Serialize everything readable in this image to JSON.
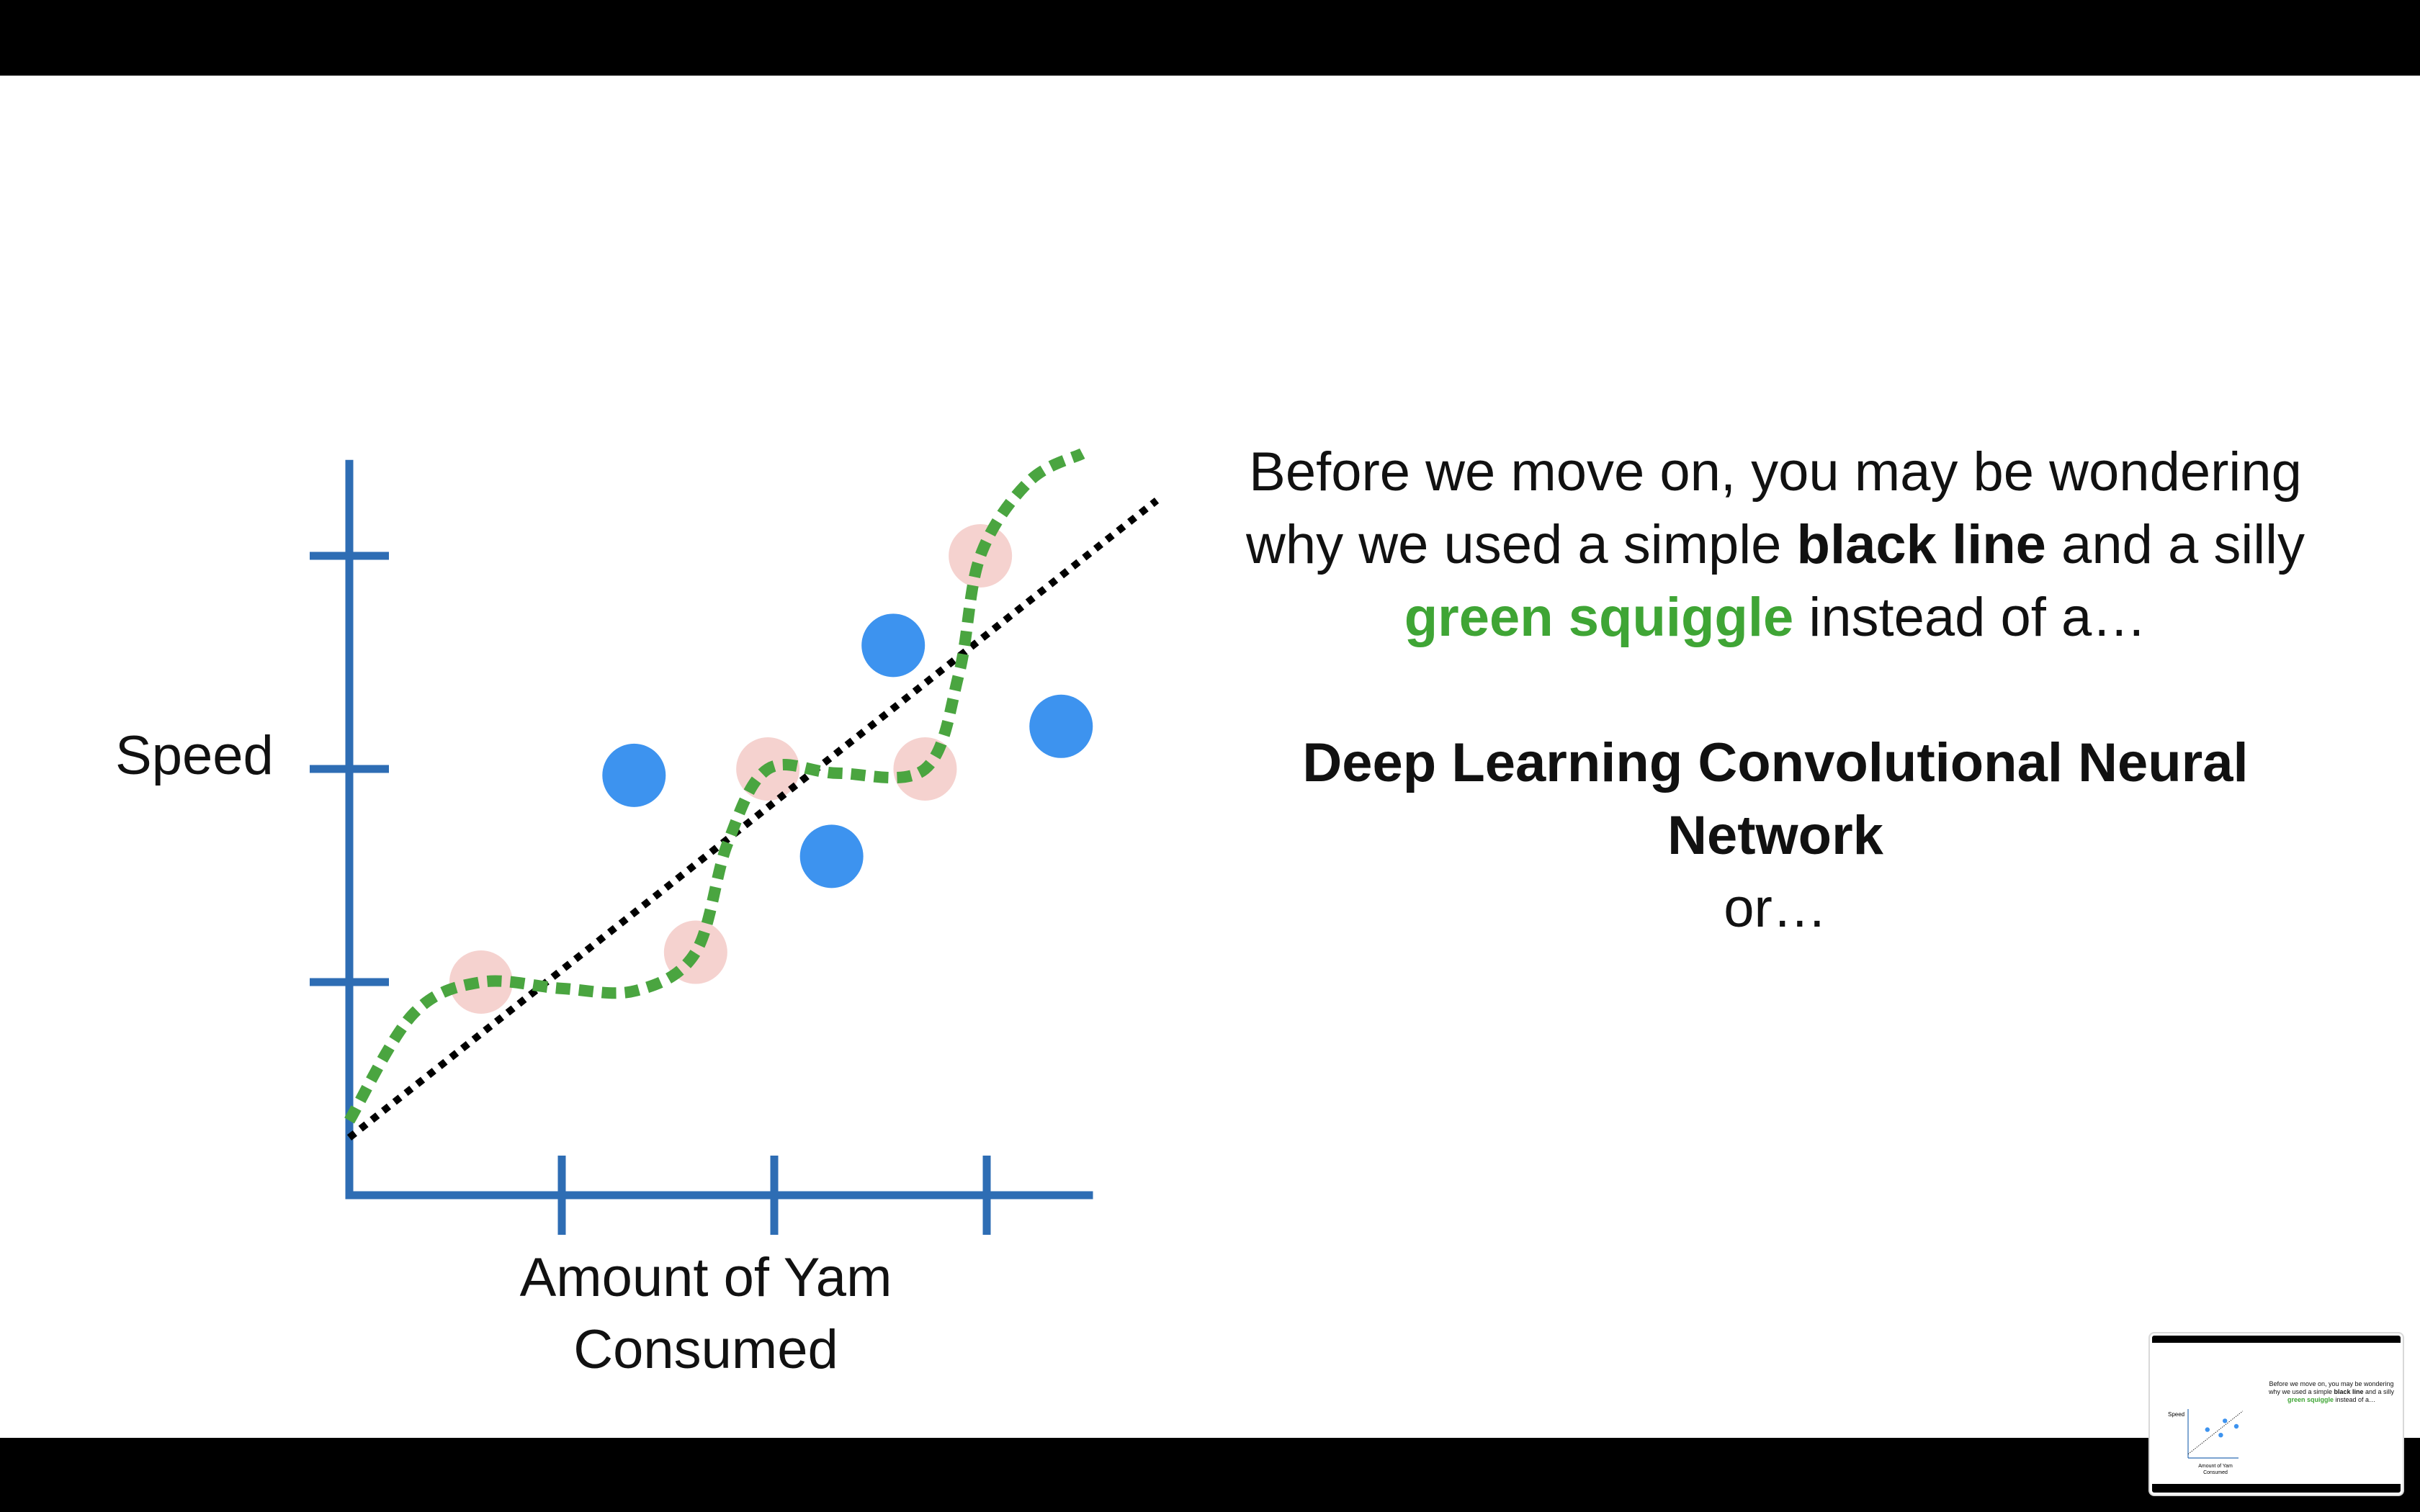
{
  "window": {
    "background": "#000000",
    "slide_background": "#ffffff"
  },
  "chart_data": {
    "type": "scatter",
    "title": "",
    "xlabel": "Amount of Yam Consumed",
    "xlabel_lines": [
      "Amount of Yam",
      "Consumed"
    ],
    "ylabel": "Speed",
    "xlim": [
      0,
      3.5
    ],
    "ylim": [
      0,
      3.2
    ],
    "grid": false,
    "axis_color": "#2e6db4",
    "x_ticks": [
      1,
      2,
      3
    ],
    "y_ticks": [
      1,
      2,
      3
    ],
    "series": [
      {
        "kind": "training_points",
        "color": "#f5d2cf",
        "points": [
          {
            "x": 0.62,
            "y": 1.0
          },
          {
            "x": 1.63,
            "y": 1.14
          },
          {
            "x": 1.97,
            "y": 2.0
          },
          {
            "x": 2.71,
            "y": 2.0
          },
          {
            "x": 2.97,
            "y": 3.0
          }
        ]
      },
      {
        "kind": "testing_points",
        "color": "#3d93ef",
        "points": [
          {
            "x": 1.34,
            "y": 1.97
          },
          {
            "x": 2.27,
            "y": 1.59
          },
          {
            "x": 2.56,
            "y": 2.58
          },
          {
            "x": 3.35,
            "y": 2.2
          }
        ]
      },
      {
        "kind": "black_line",
        "color": "#000000",
        "style": "dotted",
        "points": [
          {
            "x": 0.0,
            "y": 0.27
          },
          {
            "x": 3.8,
            "y": 3.26
          }
        ]
      },
      {
        "kind": "green_squiggle",
        "color": "#4aa540",
        "style": "dashed",
        "points": [
          {
            "x": 0.0,
            "y": 0.35
          },
          {
            "x": 0.3,
            "y": 0.85
          },
          {
            "x": 0.62,
            "y": 1.0
          },
          {
            "x": 1.0,
            "y": 0.97
          },
          {
            "x": 1.35,
            "y": 0.96
          },
          {
            "x": 1.63,
            "y": 1.14
          },
          {
            "x": 1.78,
            "y": 1.65
          },
          {
            "x": 1.97,
            "y": 2.0
          },
          {
            "x": 2.3,
            "y": 1.98
          },
          {
            "x": 2.71,
            "y": 2.0
          },
          {
            "x": 2.87,
            "y": 2.45
          },
          {
            "x": 2.97,
            "y": 3.0
          },
          {
            "x": 3.2,
            "y": 3.35
          },
          {
            "x": 3.45,
            "y": 3.48
          }
        ]
      }
    ]
  },
  "text": {
    "line1": "Before we move on, you may be wondering",
    "line2_pre": "why we used a simple ",
    "line2_bold": "black line",
    "line2_post": " and a silly",
    "line3_green": "green squiggle",
    "line3_post": " instead of a…",
    "dl_line1": "Deep Learning Convolutional Neural",
    "dl_line2": "Network",
    "or": "or…"
  },
  "thumbnail": {
    "line1": "Before we move on, you may be wondering",
    "line2_pre": "why we used a simple ",
    "line2_bold": "black line",
    "line2_post": " and a silly",
    "line3_green": "green squiggle",
    "line3_post": " instead of a…"
  }
}
